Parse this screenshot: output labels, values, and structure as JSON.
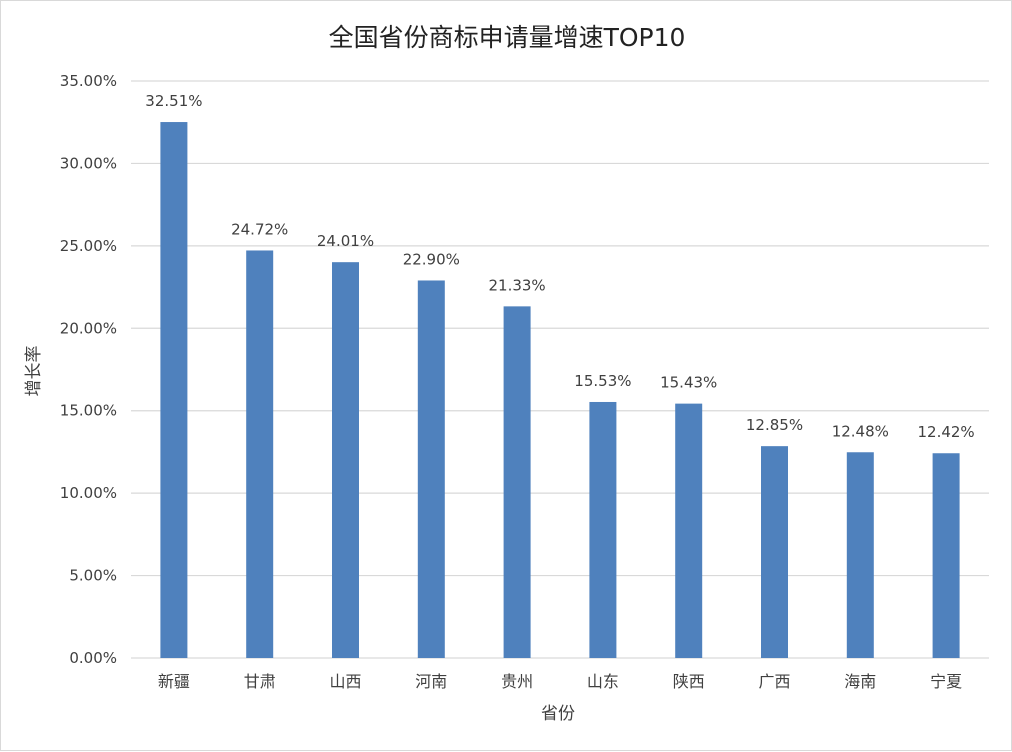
{
  "chart_data": {
    "type": "bar",
    "title": "全国省份商标申请量增速TOP10",
    "xlabel": "省份",
    "ylabel": "增长率",
    "categories": [
      "新疆",
      "甘肃",
      "山西",
      "河南",
      "贵州",
      "山东",
      "陕西",
      "广西",
      "海南",
      "宁夏"
    ],
    "values": [
      32.51,
      24.72,
      24.01,
      22.9,
      21.33,
      15.53,
      15.43,
      12.85,
      12.48,
      12.42
    ],
    "data_labels": [
      "32.51%",
      "24.72%",
      "24.01%",
      "22.90%",
      "21.33%",
      "15.53%",
      "15.43%",
      "12.85%",
      "12.48%",
      "12.42%"
    ],
    "ylim": [
      0,
      35
    ],
    "yticks": [
      0,
      5,
      10,
      15,
      20,
      25,
      30,
      35
    ],
    "ytick_labels": [
      "0.00%",
      "5.00%",
      "10.00%",
      "15.00%",
      "20.00%",
      "25.00%",
      "30.00%",
      "35.00%"
    ],
    "grid": true,
    "legend": "none",
    "bar_color": "#4f81bd",
    "grid_color": "#d9d9d9"
  }
}
